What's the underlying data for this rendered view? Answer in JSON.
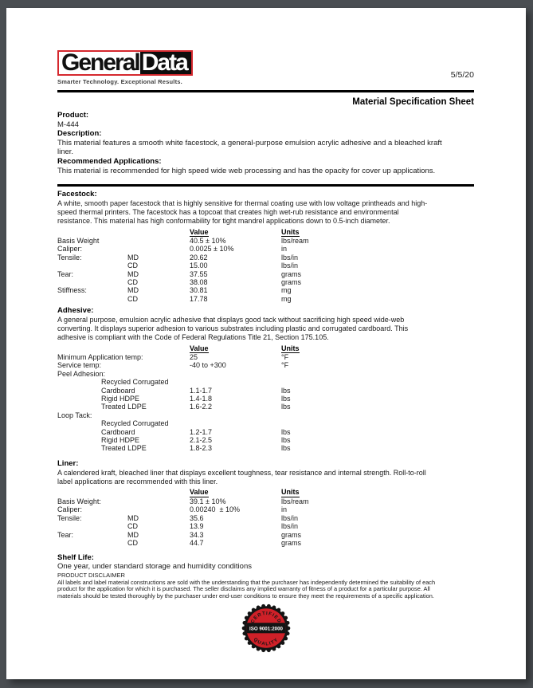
{
  "header": {
    "date": "5/5/20",
    "title": "Material Specification Sheet"
  },
  "logo": {
    "part1": "General",
    "part2": "Data",
    "tagline": "Smarter Technology. Exceptional Results.",
    "border_color": "#d5282e"
  },
  "intro": {
    "product_label": "Product:",
    "product_value": "M-444",
    "description_label": "Description:",
    "description_text": "This material features a smooth white facestock, a general-purpose emulsion acrylic adhesive and a bleached kraft\nliner.",
    "applications_label": "Recommended Applications:",
    "applications_text": "This material is recommended for high speed wide web processing and has the opacity for cover up applications."
  },
  "table_headers": {
    "value": "Value",
    "units": "Units"
  },
  "sections": {
    "facestock": {
      "heading": "Facestock:",
      "body": "A white, smooth paper facestock that is highly sensitive for thermal coating use with low voltage printheads and high-\nspeed thermal printers. The facestock has a topcoat that creates high wet-rub resistance and environmental\nresistance. This material has high conformability for tight mandrel applications down to 0.5-inch diameter.",
      "rows": [
        {
          "label": "Basis Weight",
          "sub": "",
          "value": "40.5 ± 10%",
          "units": "lbs/ream"
        },
        {
          "label": "Caliper:",
          "sub": "",
          "value": "0.0025 ± 10%",
          "units": "in"
        },
        {
          "label": "Tensile:",
          "sub": "MD",
          "value": "20.62",
          "units": "lbs/in"
        },
        {
          "label": "",
          "sub": "CD",
          "value": "15.00",
          "units": "lbs/in"
        },
        {
          "label": "Tear:",
          "sub": "MD",
          "value": "37.55",
          "units": "grams"
        },
        {
          "label": "",
          "sub": "CD",
          "value": "38.08",
          "units": "grams"
        },
        {
          "label": "Stiffness:",
          "sub": "MD",
          "value": "30.81",
          "units": "mg"
        },
        {
          "label": "",
          "sub": "CD",
          "value": "17.78",
          "units": "mg"
        }
      ]
    },
    "adhesive": {
      "heading": "Adhesive:",
      "body": "A general purpose, emulsion acrylic adhesive that displays good tack without sacrificing high speed wide-web\nconverting. It displays superior adhesion to various substrates including plastic and corrugated cardboard. This\nadhesive is compliant with the Code of Federal Regulations Title 21, Section 175.105.",
      "rows": [
        {
          "label": "Minimum Application temp:",
          "sub": "",
          "value": "25",
          "units": "°F"
        },
        {
          "label": "Service temp:",
          "sub": "",
          "value": "-40 to +300",
          "units": "°F"
        },
        {
          "label": "Peel Adhesion:",
          "sub": "",
          "value": "",
          "units": ""
        },
        {
          "label": "Recycled Corrugated",
          "indent": true,
          "sub": "",
          "value": "",
          "units": ""
        },
        {
          "label": "Cardboard",
          "indent": true,
          "sub": "",
          "value": "1.1-1.7",
          "units": "lbs"
        },
        {
          "label": "Rigid HDPE",
          "indent": true,
          "sub": "",
          "value": "1.4-1.8",
          "units": "lbs"
        },
        {
          "label": "Treated LDPE",
          "indent": true,
          "sub": "",
          "value": "1.6-2.2",
          "units": "lbs"
        },
        {
          "label": "Loop Tack:",
          "sub": "",
          "value": "",
          "units": ""
        },
        {
          "label": "Recycled Corrugated",
          "indent": true,
          "sub": "",
          "value": "",
          "units": ""
        },
        {
          "label": "Cardboard",
          "indent": true,
          "sub": "",
          "value": "1.2-1.7",
          "units": "lbs"
        },
        {
          "label": "Rigid HDPE",
          "indent": true,
          "sub": "",
          "value": "2.1-2.5",
          "units": "lbs"
        },
        {
          "label": "Treated LDPE",
          "indent": true,
          "sub": "",
          "value": "1.8-2.3",
          "units": "lbs"
        }
      ]
    },
    "liner": {
      "heading": "Liner:",
      "body": "A calendered kraft, bleached liner that displays excellent toughness, tear resistance and internal strength. Roll-to-roll\nlabel applications are recommended with this liner.",
      "rows": [
        {
          "label": "Basis Weight:",
          "sub": "",
          "value": "39.1 ± 10%",
          "units": "lbs/ream"
        },
        {
          "label": "Caliper:",
          "sub": "",
          "value": "0.00240  ± 10%",
          "units": "in"
        },
        {
          "label": "Tensile:",
          "sub": "MD",
          "value": "35.6",
          "units": "lbs/in"
        },
        {
          "label": "",
          "sub": "CD",
          "value": "13.9",
          "units": "lbs/in"
        },
        {
          "label": "Tear:",
          "sub": "MD",
          "value": "34.3",
          "units": "grams"
        },
        {
          "label": "",
          "sub": "CD",
          "value": "44.7",
          "units": "grams"
        }
      ]
    }
  },
  "shelf_life": {
    "heading": "Shelf Life:",
    "text": "One year, under standard storage and humidity conditions"
  },
  "disclaimer": {
    "heading": "PRODUCT DISCLAIMER",
    "text": "All labels and label material constructions are sold with the understanding that the purchaser has independently determined the suitability of each\nproduct for the application for which it is purchased. The seller disclaims any implied warranty of fitness of a product for a particular purpose. All\nmaterials should be tested thoroughly by the purchaser under end-user conditions to ensure they meet the requirements of a specific application."
  },
  "seal": {
    "top_text": "CERTIFIED",
    "middle_text": "ISO 9001:2000",
    "bottom_text": "QUALITY",
    "red": "#cf2028",
    "black": "#141414"
  }
}
